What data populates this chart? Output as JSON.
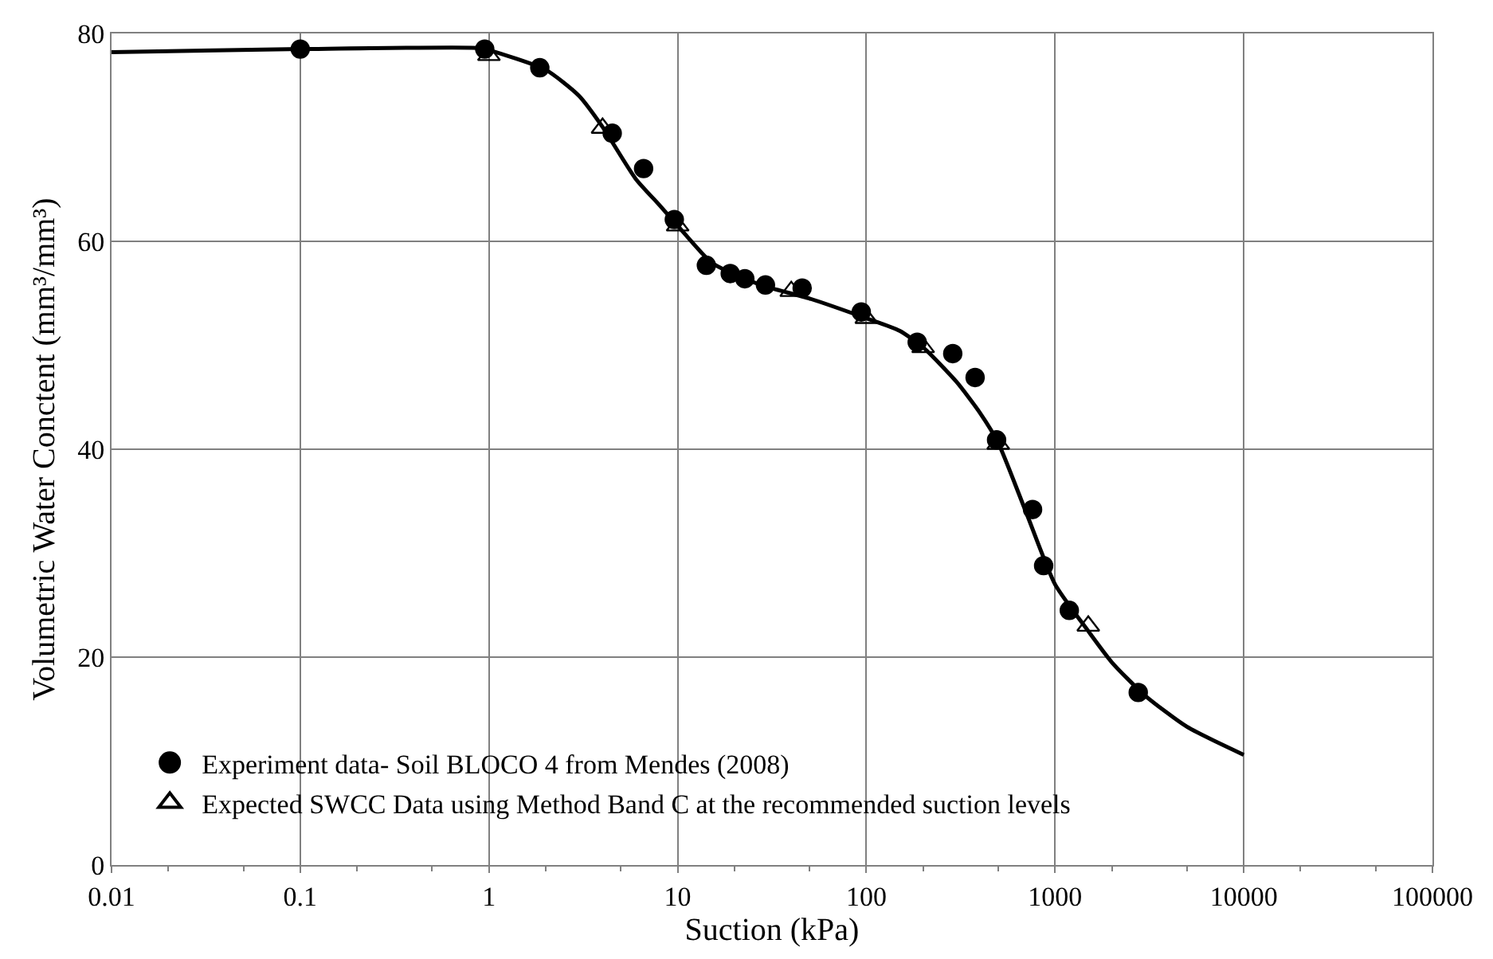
{
  "chart_data": {
    "type": "scatter",
    "xlabel": "Suction (kPa)",
    "ylabel": "Volumetric Water Conctent (mm³/mm³)",
    "log": "x",
    "xlim": [
      0.01,
      100000
    ],
    "xticks": [
      0.01,
      0.1,
      1,
      10,
      100,
      1000,
      10000,
      100000
    ],
    "ylim": [
      0,
      80
    ],
    "yticks": [
      0,
      20,
      40,
      60,
      80
    ],
    "grid": true,
    "legend": "bottom left",
    "series": [
      {
        "name": null,
        "type": "line",
        "color": "#000000",
        "marker": "none",
        "line_style": "solid",
        "x": [
          0.01,
          0.1,
          0.9,
          1,
          2,
          3,
          4,
          6,
          8,
          10,
          15,
          20,
          30,
          50,
          100,
          150,
          200,
          300,
          400,
          500,
          700,
          1000,
          1500,
          2000,
          3000,
          5000,
          10000
        ],
        "values": [
          78.2,
          78.5,
          78.6,
          78.4,
          76.5,
          74,
          71,
          66,
          63.5,
          61.5,
          58,
          56.8,
          55.6,
          54.5,
          52.6,
          51.4,
          49.8,
          46.5,
          43.5,
          40.6,
          34,
          27,
          22.5,
          19.5,
          16.3,
          13.3,
          10.6
        ]
      },
      {
        "name": "Experiment data- Soil BLOCO 4 from Mendes (2008)",
        "color": "#000000",
        "marker": "circle",
        "x": [
          0.1,
          0.95,
          1.86,
          4.5,
          6.6,
          9.6,
          14.2,
          19,
          22.7,
          29.2,
          45.7,
          94,
          186,
          287,
          377,
          490,
          760,
          870,
          1190,
          2760
        ],
        "values": [
          78.5,
          78.5,
          76.7,
          70.4,
          67.0,
          62.1,
          57.7,
          56.9,
          56.4,
          55.8,
          55.5,
          53.2,
          50.3,
          49.2,
          46.9,
          40.9,
          34.2,
          28.8,
          24.5,
          16.6
        ]
      },
      {
        "name": "Expected SWCC Data using Method Band C at the recommended suction levels",
        "color": "#000000",
        "marker": "triangle",
        "x": [
          1,
          4,
          10,
          40,
          100,
          200,
          500,
          1500
        ],
        "values": [
          77.9,
          70.9,
          61.5,
          55.2,
          52.6,
          49.8,
          40.5,
          23.0
        ]
      }
    ]
  }
}
